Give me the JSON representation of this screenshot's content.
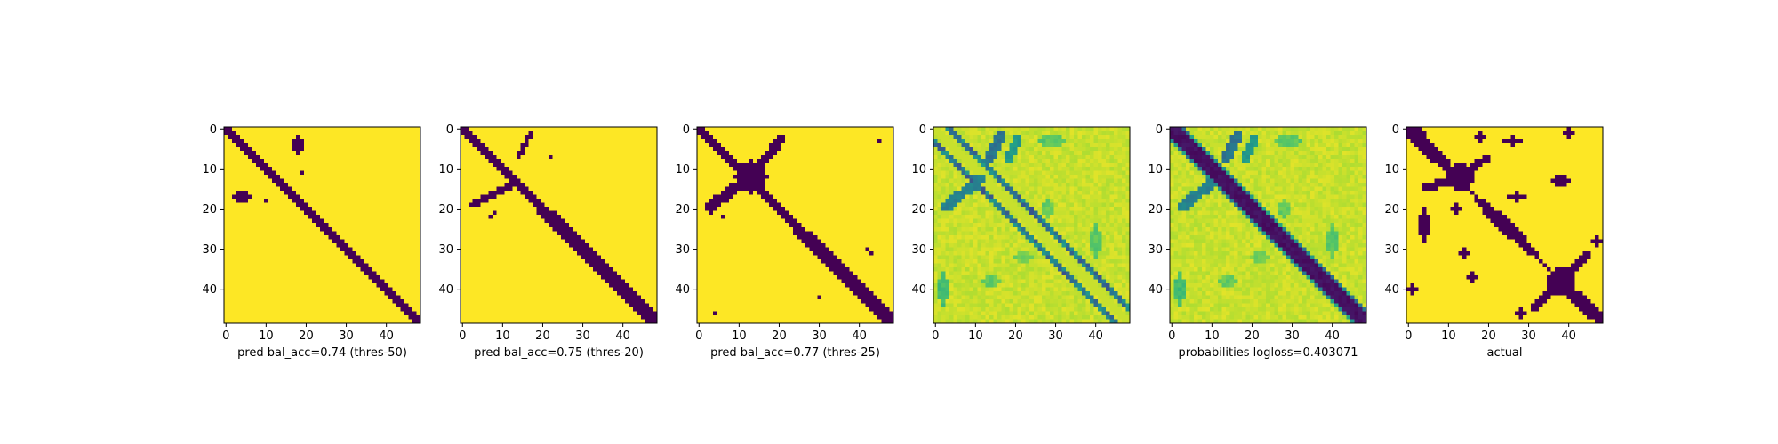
{
  "figure": {
    "background": "#ffffff",
    "colormap": "viridis",
    "colors": {
      "low": "#440154",
      "high": "#fde725"
    },
    "panel_count": 6
  },
  "chart_data": [
    {
      "type": "heatmap",
      "title": "",
      "xlabel": "pred bal_acc=0.74 (thres-50)",
      "ylabel": "",
      "size": 49,
      "xlim": [
        -0.5,
        48.5
      ],
      "ylim": [
        48.5,
        -0.5
      ],
      "xticks": [
        0,
        10,
        20,
        30,
        40
      ],
      "yticks": [
        0,
        10,
        20,
        30,
        40
      ],
      "values": "binary 49x49 grid: purple main diagonal band from (0,0) to (48,48) about 2-3 cells wide; small purple blobs near rows 2-6 around columns 17-19, near rows 16-19 around columns 2-6, one dot near (11,19) and (18,10); rest yellow"
    },
    {
      "type": "heatmap",
      "title": "",
      "xlabel": "pred bal_acc=0.75 (thres-20)",
      "ylabel": "",
      "size": 49,
      "xlim": [
        -0.5,
        48.5
      ],
      "ylim": [
        48.5,
        -0.5
      ],
      "xticks": [
        0,
        10,
        20,
        30,
        40
      ],
      "yticks": [
        0,
        10,
        20,
        30,
        40
      ],
      "values": "binary 49x49 grid: purple main diagonal band slightly wider than panel 1; off-diagonal purple streaks from (1,17) to (7,14) and from (14,13) to (19,2); small dots near (8,22) and (21,8); rest yellow"
    },
    {
      "type": "heatmap",
      "title": "",
      "xlabel": "pred bal_acc=0.77 (thres-25)",
      "ylabel": "",
      "size": 49,
      "xlim": [
        -0.5,
        48.5
      ],
      "ylim": [
        48.5,
        -0.5
      ],
      "xticks": [
        0,
        10,
        20,
        30,
        40
      ],
      "yticks": [
        0,
        10,
        20,
        30,
        40
      ],
      "values": "binary 49x49 grid: purple main diagonal band with a large X-shaped blob centred near (12,13); anti-diagonal arms from (2,20) to (20,2); isolated dots near (3,45), (30,42), (42,30), (45,3), (4,46); rest yellow"
    },
    {
      "type": "heatmap",
      "title": "",
      "xlabel": "",
      "ylabel": "",
      "size": 49,
      "xlim": [
        -0.5,
        48.5
      ],
      "ylim": [
        48.5,
        -0.5
      ],
      "xticks": [
        0,
        10,
        20,
        30,
        40
      ],
      "yticks": [
        0,
        10,
        20,
        30,
        40
      ],
      "values": "continuous 49x49 grid, mostly yellow-green; two parallel teal/purple diagonal lines offset about 3 cells either side of the main diagonal (main diagonal itself yellow); anti-diagonal teal streaks around rows 2-22 columns 2-20; faint green patches scattered in the lower half"
    },
    {
      "type": "heatmap",
      "title": "",
      "xlabel": "probabilities logloss=0.403071",
      "ylabel": "",
      "size": 49,
      "xlim": [
        -0.5,
        48.5
      ],
      "ylim": [
        48.5,
        -0.5
      ],
      "xticks": [
        0,
        10,
        20,
        30,
        40
      ],
      "yticks": [
        0,
        10,
        20,
        30,
        40
      ],
      "values": "continuous 49x49 grid: dark purple main diagonal band about 4 cells wide, teal/green edges, anti-diagonal teal streaks in rows 2-22 columns 2-20, faint green patches elsewhere; background yellow"
    },
    {
      "type": "heatmap",
      "title": "",
      "xlabel": "actual",
      "ylabel": "",
      "size": 49,
      "xlim": [
        -0.5,
        48.5
      ],
      "ylim": [
        48.5,
        -0.5
      ],
      "xticks": [
        0,
        10,
        20,
        30,
        40
      ],
      "yticks": [
        0,
        10,
        20,
        30,
        40
      ],
      "values": "binary 49x49 grid: irregular purple main diagonal band with an X crossing near (12,13) and another near (38,38); many scattered purple blobs off the diagonal near the top rows, left columns and lower-right corner; rest yellow"
    }
  ]
}
